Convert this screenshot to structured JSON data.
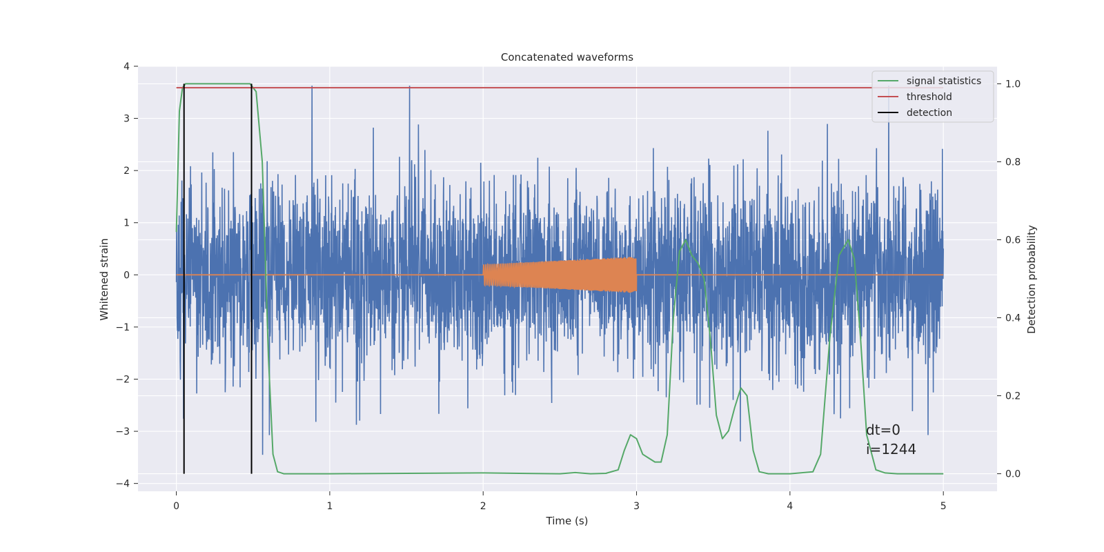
{
  "chart_data": {
    "type": "line",
    "title": "Concatenated waveforms",
    "xlabel": "Time (s)",
    "ylabel": "Whitened strain",
    "y2label": "Detection probability",
    "xlim": [
      -0.25,
      5.35
    ],
    "ylim": [
      -4.15,
      4.0
    ],
    "y2lim": [
      -0.045,
      1.045
    ],
    "xticks": [
      0,
      1,
      2,
      3,
      4,
      5
    ],
    "xtick_labels": [
      "0",
      "1",
      "2",
      "3",
      "4",
      "5"
    ],
    "yticks": [
      4,
      3,
      2,
      1,
      0,
      -1,
      -2,
      -3,
      -4
    ],
    "ytick_labels": [
      "4",
      "3",
      "2",
      "1",
      "0",
      "−1",
      "−2",
      "−3",
      "−4"
    ],
    "y2ticks": [
      1.0,
      0.8,
      0.6,
      0.4,
      0.2,
      0.0
    ],
    "y2tick_labels": [
      "1.0",
      "0.8",
      "0.6",
      "0.4",
      "0.2",
      "0.0"
    ],
    "grid": true,
    "legend_position": "top-right",
    "legend": [
      {
        "label": "signal statistics",
        "color": "#55a868"
      },
      {
        "label": "threshold",
        "color": "#c44e52"
      },
      {
        "label": "detection",
        "color": "#000000"
      }
    ],
    "annotations": [
      "dt=0",
      "i=1244"
    ],
    "series": [
      {
        "name": "",
        "axis": "left",
        "color": "#4c72b0",
        "description": "whitened noise strain over 0–5 s, dense, roughly ±2 with spikes up to ±3.6",
        "x_range": [
          0,
          5
        ],
        "envelope": [
          -2.6,
          2.9
        ]
      },
      {
        "name": "",
        "axis": "left",
        "color": "#dd8452",
        "description": "injected chirp waveform between 2 and 3 s, amplitude growing from about 0.2 to 0.35, zero elsewhere",
        "x_range": [
          0,
          5
        ],
        "chirp": {
          "start": 2.0,
          "end": 3.0,
          "amp_start": 0.2,
          "amp_end": 0.35
        }
      },
      {
        "name": "signal statistics",
        "axis": "right",
        "color": "#55a868",
        "x": [
          0.0,
          0.02,
          0.04,
          0.06,
          0.1,
          0.2,
          0.3,
          0.4,
          0.48,
          0.52,
          0.56,
          0.6,
          0.63,
          0.66,
          0.7,
          1.0,
          1.5,
          2.0,
          2.5,
          2.6,
          2.7,
          2.8,
          2.88,
          2.92,
          2.96,
          3.0,
          3.04,
          3.08,
          3.12,
          3.16,
          3.2,
          3.24,
          3.28,
          3.32,
          3.36,
          3.4,
          3.44,
          3.48,
          3.52,
          3.56,
          3.6,
          3.64,
          3.68,
          3.72,
          3.76,
          3.8,
          3.86,
          4.0,
          4.15,
          4.2,
          4.26,
          4.32,
          4.38,
          4.42,
          4.46,
          4.5,
          4.56,
          4.62,
          4.7,
          5.0
        ],
        "y": [
          0.62,
          0.93,
          0.99,
          1.0,
          1.0,
          1.0,
          1.0,
          1.0,
          1.0,
          0.98,
          0.8,
          0.3,
          0.05,
          0.005,
          0.0,
          0.0,
          0.001,
          0.002,
          0.0,
          0.003,
          0.0,
          0.001,
          0.01,
          0.06,
          0.1,
          0.09,
          0.05,
          0.04,
          0.03,
          0.03,
          0.1,
          0.4,
          0.57,
          0.6,
          0.56,
          0.54,
          0.5,
          0.35,
          0.15,
          0.09,
          0.11,
          0.17,
          0.22,
          0.2,
          0.06,
          0.005,
          0.0,
          0.0,
          0.005,
          0.05,
          0.35,
          0.56,
          0.6,
          0.55,
          0.35,
          0.1,
          0.01,
          0.002,
          0.0,
          0.0
        ]
      },
      {
        "name": "threshold",
        "axis": "right",
        "color": "#c44e52",
        "x": [
          0,
          5
        ],
        "y": [
          0.99,
          0.99
        ]
      },
      {
        "name": "detection",
        "axis": "right",
        "color": "#000000",
        "type": "vlines",
        "x": [
          0.05,
          0.49
        ],
        "y_range": [
          0.0,
          1.0
        ]
      }
    ]
  }
}
